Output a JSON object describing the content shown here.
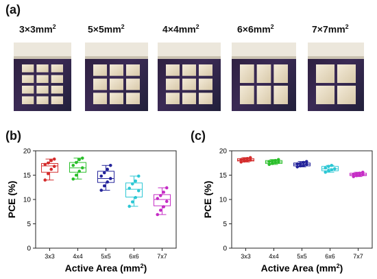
{
  "panels": {
    "a": "(a)",
    "b": "(b)",
    "c": "(c)"
  },
  "area_labels": [
    {
      "base": "3×3mm",
      "sup": "2"
    },
    {
      "base": "5×5mm",
      "sup": "2"
    },
    {
      "base": "4×4mm",
      "sup": "2"
    },
    {
      "base": "6×6mm",
      "sup": "2"
    },
    {
      "base": "7×7mm",
      "sup": "2"
    }
  ],
  "cells": [
    {
      "grid": [
        3,
        4
      ]
    },
    {
      "grid": [
        3,
        3
      ]
    },
    {
      "grid": [
        3,
        3
      ]
    },
    {
      "grid": [
        3,
        2
      ]
    },
    {
      "grid": [
        2,
        2
      ]
    }
  ],
  "chart_data": [
    {
      "type": "box",
      "panel": "b",
      "categories": [
        "3x3",
        "4x4",
        "5x5",
        "6x6",
        "7x7"
      ],
      "ylabel": "PCE (%)",
      "xlabel": "Active Area (mm²)",
      "xlabel_base": "Active Area (mm",
      "xlabel_sup": "2",
      "xlabel_tail": ")",
      "ylim": [
        0,
        20
      ],
      "yticks": [
        0,
        5,
        10,
        15,
        20
      ],
      "colors": [
        "#d42c2c",
        "#2bbf2b",
        "#23239a",
        "#2cc7d4",
        "#c52cc5"
      ],
      "boxes": [
        {
          "q1": 15.6,
          "median": 16.9,
          "q3": 17.4,
          "min": 14.0,
          "max": 18.3
        },
        {
          "q1": 15.6,
          "median": 16.5,
          "q3": 17.6,
          "min": 14.2,
          "max": 18.5
        },
        {
          "q1": 13.5,
          "median": 14.3,
          "q3": 15.8,
          "min": 11.9,
          "max": 17.0
        },
        {
          "q1": 10.5,
          "median": 12.1,
          "q3": 13.4,
          "min": 8.6,
          "max": 14.8
        },
        {
          "q1": 8.7,
          "median": 10.0,
          "q3": 11.0,
          "min": 6.9,
          "max": 12.4
        }
      ],
      "points": [
        [
          14.0,
          15.3,
          16.2,
          16.8,
          17.2,
          17.5,
          18.0,
          18.3
        ],
        [
          14.2,
          15.0,
          15.8,
          16.5,
          17.0,
          17.6,
          18.2,
          18.5
        ],
        [
          11.9,
          12.8,
          13.6,
          14.3,
          14.8,
          15.5,
          16.2,
          17.0
        ],
        [
          8.6,
          9.5,
          10.4,
          11.8,
          12.3,
          13.2,
          13.8,
          14.8
        ],
        [
          6.9,
          7.8,
          8.5,
          9.6,
          10.2,
          10.8,
          11.5,
          12.4
        ]
      ]
    },
    {
      "type": "box",
      "panel": "c",
      "categories": [
        "3x3",
        "4x4",
        "5x5",
        "6x6",
        "7x7"
      ],
      "ylabel": "PCE (%)",
      "xlabel": "Active Area (mm²)",
      "xlabel_base": "Active Area (mm",
      "xlabel_sup": "2",
      "xlabel_tail": ")",
      "ylim": [
        0,
        20
      ],
      "yticks": [
        0,
        5,
        10,
        15,
        20
      ],
      "colors": [
        "#d42c2c",
        "#2bbf2b",
        "#23239a",
        "#2cc7d4",
        "#c52cc5"
      ],
      "boxes": [
        {
          "q1": 17.9,
          "median": 18.1,
          "q3": 18.4,
          "min": 17.7,
          "max": 18.6
        },
        {
          "q1": 17.4,
          "median": 17.7,
          "q3": 18.0,
          "min": 17.2,
          "max": 18.2
        },
        {
          "q1": 16.9,
          "median": 17.2,
          "q3": 17.5,
          "min": 16.7,
          "max": 17.8
        },
        {
          "q1": 15.9,
          "median": 16.3,
          "q3": 16.8,
          "min": 15.6,
          "max": 17.0
        },
        {
          "q1": 14.9,
          "median": 15.1,
          "q3": 15.4,
          "min": 14.7,
          "max": 15.6
        }
      ],
      "points": [
        [
          17.7,
          17.9,
          18.0,
          18.1,
          18.2,
          18.3,
          18.4,
          18.6
        ],
        [
          17.2,
          17.4,
          17.6,
          17.7,
          17.8,
          17.9,
          18.0,
          18.2
        ],
        [
          16.7,
          16.9,
          17.0,
          17.2,
          17.3,
          17.4,
          17.6,
          17.8
        ],
        [
          15.6,
          15.9,
          16.1,
          16.3,
          16.5,
          16.8,
          17.0
        ],
        [
          14.7,
          14.9,
          15.0,
          15.1,
          15.2,
          15.3,
          15.4,
          15.6
        ]
      ]
    }
  ]
}
